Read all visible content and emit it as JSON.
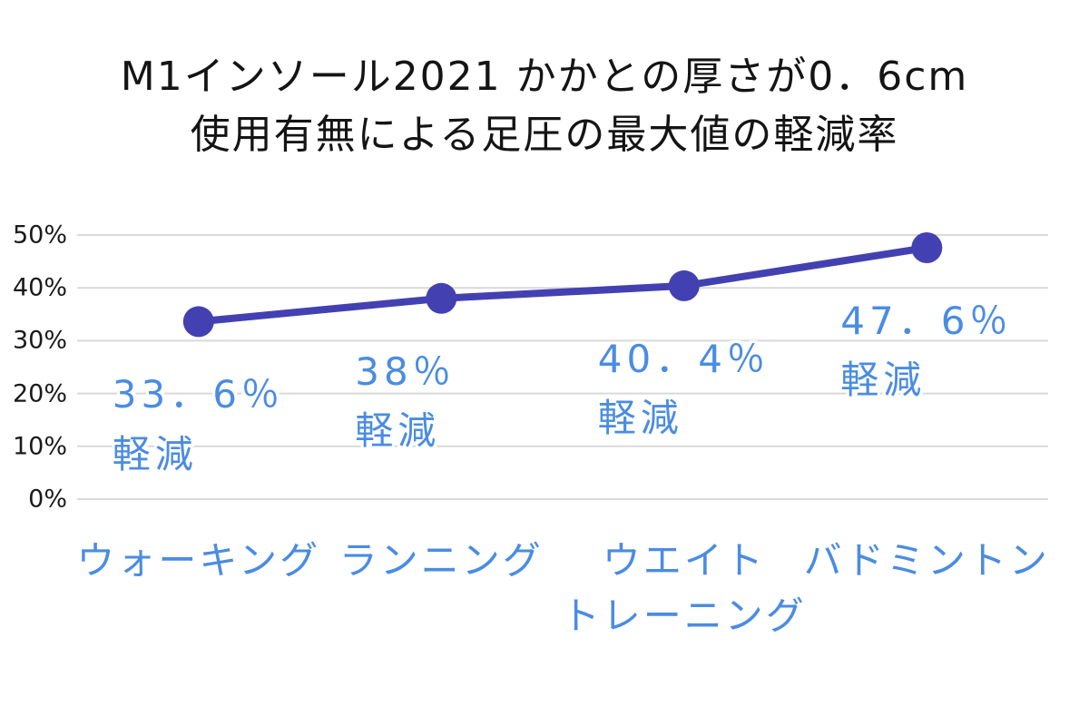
{
  "title": {
    "line1": "M1インソール2021 かかとの厚さが0．6cm",
    "line2": "使用有無による足圧の最大値の軽減率"
  },
  "chart_data": {
    "type": "line",
    "title": "M1インソール2021 かかとの厚さが0．6cm 使用有無による足圧の最大値の軽減率",
    "categories": [
      {
        "line1": "ウォーキング",
        "line2": ""
      },
      {
        "line1": "ランニング",
        "line2": ""
      },
      {
        "line1": "ウエイト",
        "line2": "トレーニング"
      },
      {
        "line1": "バドミントン",
        "line2": ""
      }
    ],
    "points": [
      {
        "value": 33.6,
        "label": "33．6％",
        "suffix": "軽減"
      },
      {
        "value": 38,
        "label": "38％",
        "suffix": "軽減"
      },
      {
        "value": 40.4,
        "label": "40．4％",
        "suffix": "軽減"
      },
      {
        "value": 47.6,
        "label": "47．6％",
        "suffix": "軽減"
      }
    ],
    "xlabel": "",
    "ylabel": "",
    "ylim": [
      0,
      50
    ],
    "yticks": [
      0,
      10,
      20,
      30,
      40,
      50
    ],
    "ytick_labels": [
      "0%",
      "10%",
      "20%",
      "30%",
      "40%",
      "50%"
    ],
    "grid": true,
    "legend": "none",
    "line_color": "#4341b2",
    "marker_color": "#4341b2",
    "gridline_color": "#d9d9d9",
    "label_color": "#4a8ce2",
    "title_color": "#141414"
  }
}
